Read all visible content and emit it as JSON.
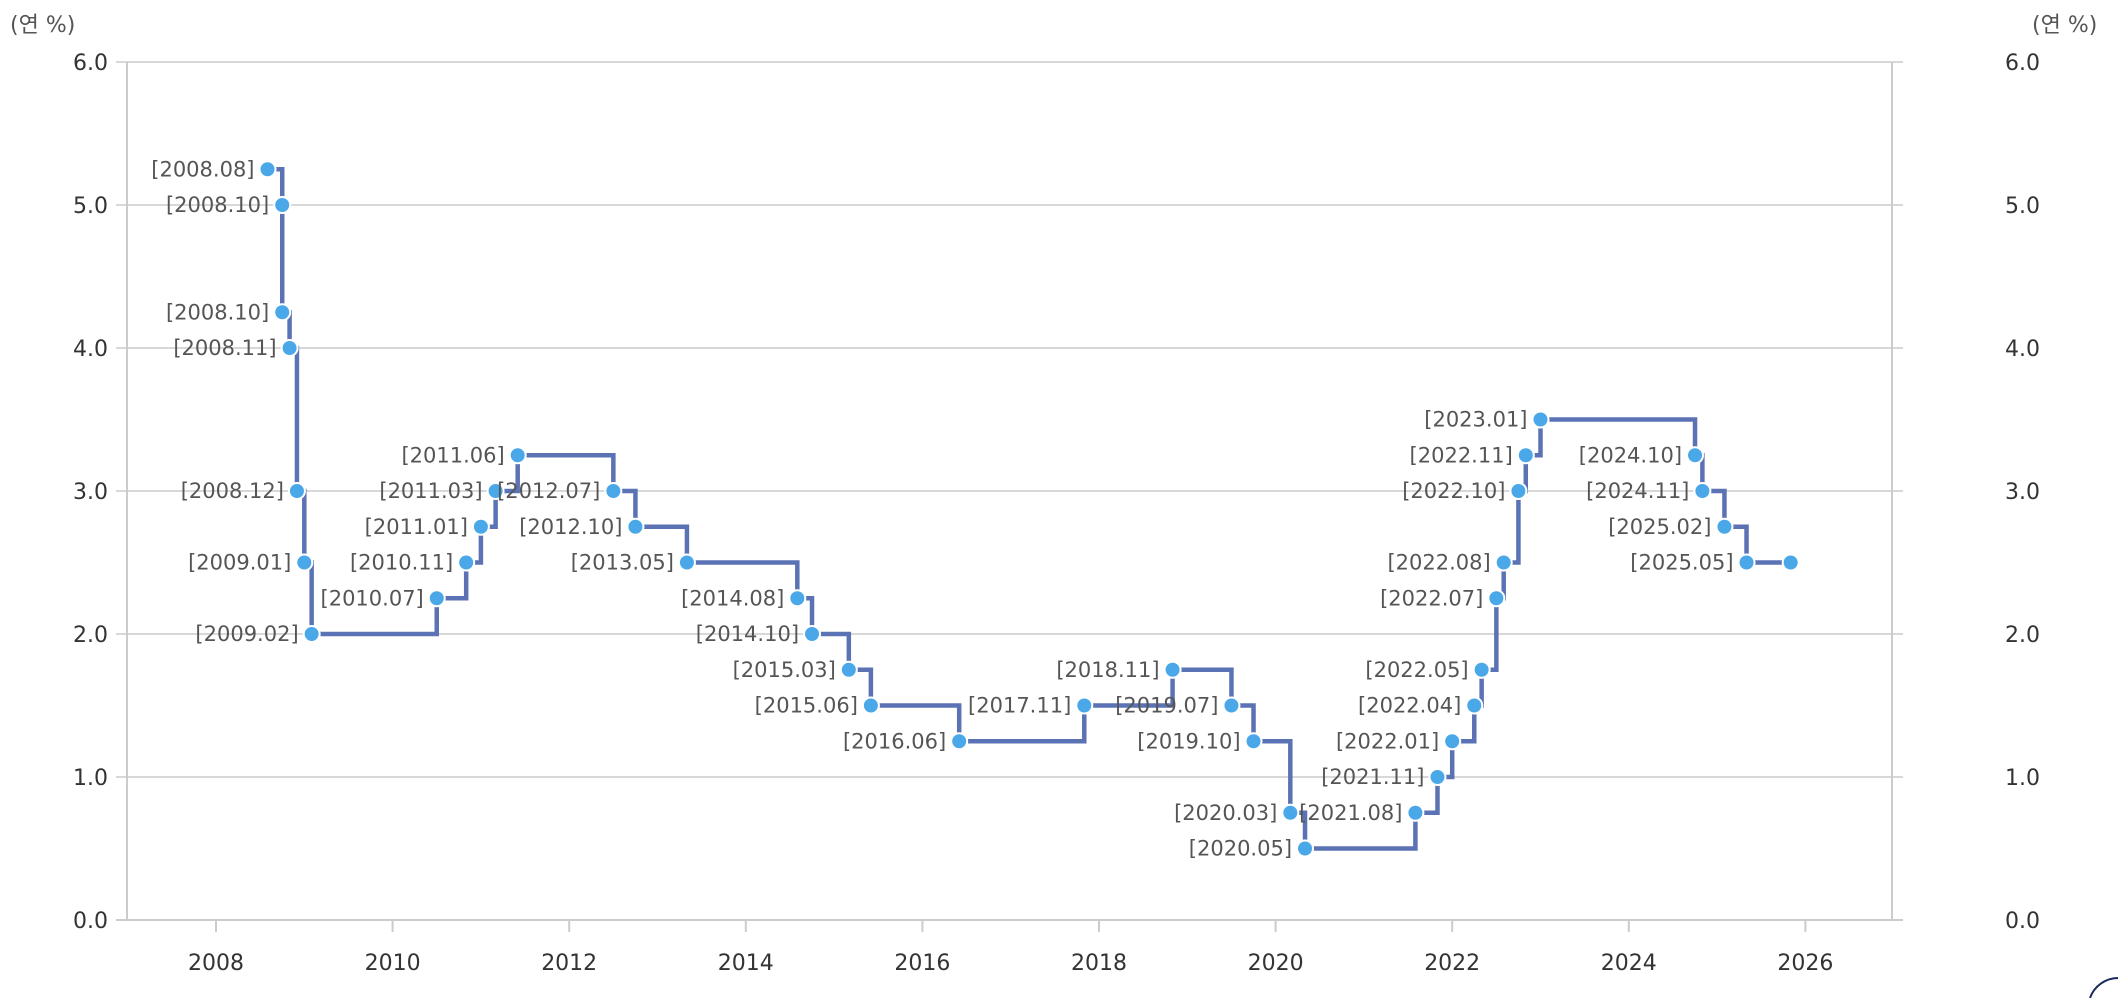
{
  "chart_data": {
    "type": "line",
    "step": true,
    "left_unit": "(연 %)",
    "right_unit": "(연 %)",
    "ylim": [
      0,
      6
    ],
    "yticks": [
      "0.0",
      "1.0",
      "2.0",
      "3.0",
      "4.0",
      "5.0",
      "6.0"
    ],
    "xlim": [
      2007,
      2026.9
    ],
    "xticks": [
      "2008",
      "2010",
      "2012",
      "2014",
      "2016",
      "2018",
      "2020",
      "2022",
      "2024",
      "2026"
    ],
    "grid": "horizontal",
    "colors": {
      "line": "#5b73b5",
      "point": "#4aa8e8"
    },
    "points": [
      {
        "date": "2008.08",
        "value": 5.25,
        "label": "[2008.08]"
      },
      {
        "date": "2008.10",
        "value": 5.0,
        "label": "[2008.10]"
      },
      {
        "date": "2008.10",
        "value": 4.25,
        "label": "[2008.10]"
      },
      {
        "date": "2008.11",
        "value": 4.0,
        "label": "[2008.11]"
      },
      {
        "date": "2008.12",
        "value": 3.0,
        "label": "[2008.12]"
      },
      {
        "date": "2009.01",
        "value": 2.5,
        "label": "[2009.01]"
      },
      {
        "date": "2009.02",
        "value": 2.0,
        "label": "[2009.02]"
      },
      {
        "date": "2010.07",
        "value": 2.25,
        "label": "[2010.07]"
      },
      {
        "date": "2010.11",
        "value": 2.5,
        "label": "[2010.11]"
      },
      {
        "date": "2011.01",
        "value": 2.75,
        "label": "[2011.01]"
      },
      {
        "date": "2011.03",
        "value": 3.0,
        "label": "[2011.03]"
      },
      {
        "date": "2011.06",
        "value": 3.25,
        "label": "[2011.06]"
      },
      {
        "date": "2012.07",
        "value": 3.0,
        "label": "[2012.07]"
      },
      {
        "date": "2012.10",
        "value": 2.75,
        "label": "[2012.10]"
      },
      {
        "date": "2013.05",
        "value": 2.5,
        "label": "[2013.05]"
      },
      {
        "date": "2014.08",
        "value": 2.25,
        "label": "[2014.08]"
      },
      {
        "date": "2014.10",
        "value": 2.0,
        "label": "[2014.10]"
      },
      {
        "date": "2015.03",
        "value": 1.75,
        "label": "[2015.03]"
      },
      {
        "date": "2015.06",
        "value": 1.5,
        "label": "[2015.06]"
      },
      {
        "date": "2016.06",
        "value": 1.25,
        "label": "[2016.06]"
      },
      {
        "date": "2017.11",
        "value": 1.5,
        "label": "[2017.11]"
      },
      {
        "date": "2018.11",
        "value": 1.75,
        "label": "[2018.11]"
      },
      {
        "date": "2019.07",
        "value": 1.5,
        "label": "[2019.07]"
      },
      {
        "date": "2019.10",
        "value": 1.25,
        "label": "[2019.10]"
      },
      {
        "date": "2020.03",
        "value": 0.75,
        "label": "[2020.03]"
      },
      {
        "date": "2020.05",
        "value": 0.5,
        "label": "[2020.05]"
      },
      {
        "date": "2021.08",
        "value": 0.75,
        "label": "[2021.08]"
      },
      {
        "date": "2021.11",
        "value": 1.0,
        "label": "[2021.11]"
      },
      {
        "date": "2022.01",
        "value": 1.25,
        "label": "[2022.01]"
      },
      {
        "date": "2022.04",
        "value": 1.5,
        "label": "[2022.04]"
      },
      {
        "date": "2022.05",
        "value": 1.75,
        "label": "[2022.05]"
      },
      {
        "date": "2022.07",
        "value": 2.25,
        "label": "[2022.07]"
      },
      {
        "date": "2022.08",
        "value": 2.5,
        "label": "[2022.08]"
      },
      {
        "date": "2022.10",
        "value": 3.0,
        "label": "[2022.10]"
      },
      {
        "date": "2022.11",
        "value": 3.25,
        "label": "[2022.11]"
      },
      {
        "date": "2023.01",
        "value": 3.5,
        "label": "[2023.01]"
      },
      {
        "date": "2024.10",
        "value": 3.25,
        "label": "[2024.10]"
      },
      {
        "date": "2024.11",
        "value": 3.0,
        "label": "[2024.11]"
      },
      {
        "date": "2025.02",
        "value": 2.75,
        "label": "[2025.02]"
      },
      {
        "date": "2025.05",
        "value": 2.5,
        "label": "[2025.05]"
      },
      {
        "date": "2025.11",
        "value": 2.5,
        "label": ""
      }
    ]
  }
}
